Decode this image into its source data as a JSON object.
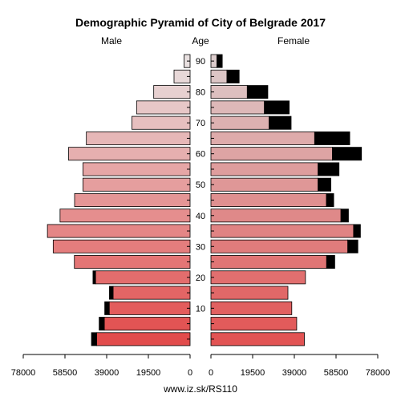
{
  "chart_data": {
    "type": "bar",
    "title": "Demographic Pyramid of City of Belgrade 2017",
    "left_label": "Male",
    "center_label": "Age",
    "right_label": "Female",
    "footer": "www.iz.sk/RS110",
    "xlim": [
      0,
      78000
    ],
    "x_ticks": [
      {
        "label": "78000",
        "value": 78000
      },
      {
        "label": "58500",
        "value": 58500
      },
      {
        "label": "39000",
        "value": 39000
      },
      {
        "label": "19500",
        "value": 19500
      },
      {
        "label": "0",
        "value": 0
      }
    ],
    "age_ticks": [
      {
        "label": "10",
        "value": 10
      },
      {
        "label": "20",
        "value": 20
      },
      {
        "label": "30",
        "value": 30
      },
      {
        "label": "40",
        "value": 40
      },
      {
        "label": "50",
        "value": 50
      },
      {
        "label": "60",
        "value": 60
      },
      {
        "label": "70",
        "value": 70
      },
      {
        "label": "80",
        "value": 80
      },
      {
        "label": "90",
        "value": 90
      }
    ],
    "age_groups": [
      {
        "start": 0,
        "male": 43700,
        "male_excess": 2400,
        "female": 43700,
        "female_excess": 0
      },
      {
        "start": 5,
        "male": 40100,
        "male_excess": 2400,
        "female": 40100,
        "female_excess": 0
      },
      {
        "start": 10,
        "male": 37800,
        "male_excess": 2100,
        "female": 37800,
        "female_excess": 0
      },
      {
        "start": 15,
        "male": 36000,
        "male_excess": 1700,
        "female": 36000,
        "female_excess": 0
      },
      {
        "start": 20,
        "male": 44200,
        "male_excess": 1200,
        "female": 44200,
        "female_excess": 0
      },
      {
        "start": 25,
        "male": 54100,
        "male_excess": 0,
        "female": 54100,
        "female_excess": 3800
      },
      {
        "start": 30,
        "male": 64000,
        "male_excess": 0,
        "female": 64000,
        "female_excess": 4700
      },
      {
        "start": 35,
        "male": 66700,
        "male_excess": 0,
        "female": 66700,
        "female_excess": 3200
      },
      {
        "start": 40,
        "male": 60800,
        "male_excess": 0,
        "female": 60800,
        "female_excess": 3500
      },
      {
        "start": 45,
        "male": 54000,
        "male_excess": 0,
        "female": 54000,
        "female_excess": 3400
      },
      {
        "start": 50,
        "male": 50100,
        "male_excess": 0,
        "female": 50100,
        "female_excess": 6000
      },
      {
        "start": 55,
        "male": 50100,
        "male_excess": 0,
        "female": 50100,
        "female_excess": 9800
      },
      {
        "start": 60,
        "male": 56800,
        "male_excess": 0,
        "female": 56800,
        "female_excess": 13600
      },
      {
        "start": 65,
        "male": 48500,
        "male_excess": 0,
        "female": 48500,
        "female_excess": 16400
      },
      {
        "start": 70,
        "male": 27200,
        "male_excess": 0,
        "female": 27200,
        "female_excess": 10300
      },
      {
        "start": 75,
        "male": 25000,
        "male_excess": 0,
        "female": 25000,
        "female_excess": 11600
      },
      {
        "start": 80,
        "male": 17000,
        "male_excess": 0,
        "female": 17000,
        "female_excess": 9600
      },
      {
        "start": 85,
        "male": 7500,
        "male_excess": 0,
        "female": 7500,
        "female_excess": 5700
      },
      {
        "start": 90,
        "male": 2800,
        "male_excess": 0,
        "female": 2800,
        "female_excess": 2500
      }
    ]
  }
}
